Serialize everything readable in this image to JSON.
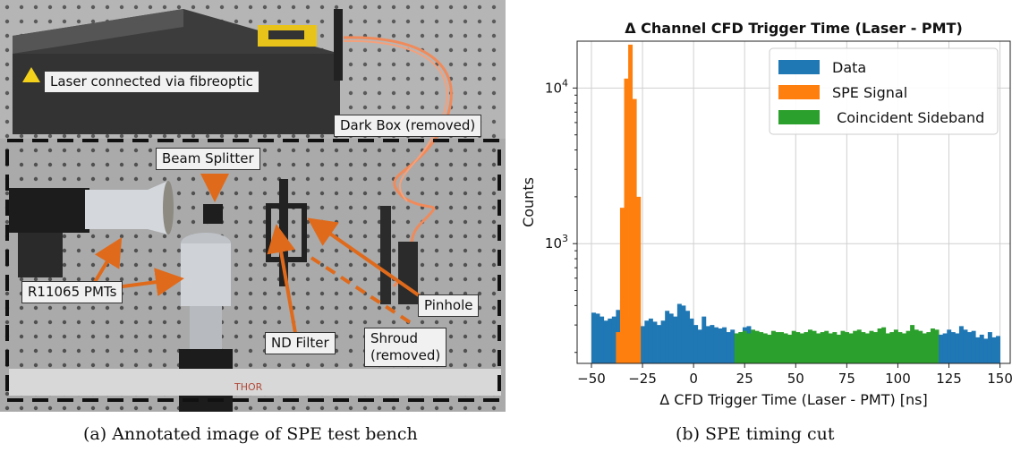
{
  "photo": {
    "annotations": {
      "laser": "Laser connected via fibreoptic",
      "dark_box": "Dark Box (removed)",
      "beam_splitter": "Beam Splitter",
      "pmts": "R11065 PMTs",
      "pinhole": "Pinhole",
      "nd_filter": "ND Filter",
      "shroud_line1": "Shroud",
      "shroud_line2": "(removed)"
    },
    "ruler_text": "THOR"
  },
  "captions": {
    "a": "(a) Annotated image of SPE test bench",
    "b": "(b) SPE timing cut"
  },
  "chart_data": {
    "type": "bar",
    "title": "Δ Channel CFD Trigger Time (Laser - PMT)",
    "xlabel": "Δ CFD Trigger Time (Laser - PMT) [ns]",
    "ylabel": "Counts",
    "y_scale": "log",
    "xlim": [
      -57,
      155
    ],
    "ylim": [
      170,
      20000
    ],
    "x_ticks": [
      -50,
      -25,
      0,
      25,
      50,
      75,
      100,
      125,
      150
    ],
    "y_ticks": [
      {
        "value": 1000,
        "base": "10",
        "exp": "3"
      },
      {
        "value": 10000,
        "base": "10",
        "exp": "4"
      }
    ],
    "grid": true,
    "legend_position": "top-right",
    "bin_width": 2,
    "series": [
      {
        "name": "Data",
        "color": "#1f77b4",
        "x_start": -50,
        "values": [
          360,
          355,
          340,
          320,
          330,
          340,
          375,
          430,
          340,
          320,
          310,
          310,
          295,
          320,
          330,
          315,
          300,
          320,
          370,
          355,
          340,
          410,
          400,
          370,
          330,
          300,
          280,
          340,
          295,
          300,
          290,
          285,
          290,
          270,
          280,
          265,
          270,
          290,
          295,
          265
        ]
      },
      {
        "name": "SPE Signal",
        "color": "#ff7f0e",
        "x_start": -38,
        "values": [
          270,
          1700,
          11500,
          19000,
          8500,
          2000
        ]
      },
      {
        "name": "Coincident Sideband",
        "color": "#2ca02c",
        "x_start": 20,
        "values": [
          265,
          270,
          275,
          265,
          280,
          275,
          270,
          265,
          260,
          275,
          270,
          270,
          265,
          260,
          275,
          270,
          265,
          270,
          280,
          275,
          265,
          270,
          275,
          265,
          270,
          260,
          275,
          270,
          265,
          275,
          280,
          270,
          265,
          275,
          270,
          285,
          290,
          265,
          270,
          280,
          270,
          265,
          275,
          300,
          280,
          275,
          265,
          270,
          285,
          280
        ]
      },
      {
        "name": "Data",
        "color": "#1f77b4",
        "x_start": 120,
        "values": [
          260,
          265,
          280,
          270,
          265,
          295,
          280,
          270,
          275,
          250,
          260,
          245,
          270,
          250,
          255
        ]
      }
    ]
  }
}
